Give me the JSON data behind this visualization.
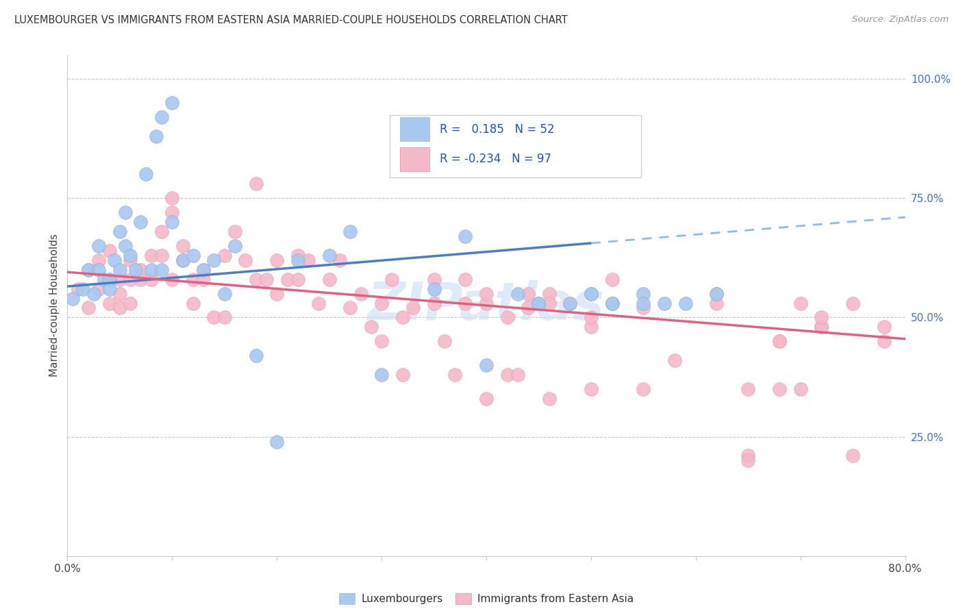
{
  "title": "LUXEMBOURGER VS IMMIGRANTS FROM EASTERN ASIA MARRIED-COUPLE HOUSEHOLDS CORRELATION CHART",
  "source": "Source: ZipAtlas.com",
  "ylabel": "Married-couple Households",
  "legend_label1": "Luxembourgers",
  "legend_label2": "Immigrants from Eastern Asia",
  "R1": 0.185,
  "N1": 52,
  "R2": -0.234,
  "N2": 97,
  "blue_color": "#A8C8F0",
  "pink_color": "#F5B8C8",
  "line_blue": "#4A7CC7",
  "line_pink": "#E06080",
  "line_blue_dashed": "#90BAE8",
  "watermark_color": "#C8DFF0",
  "xlim": [
    0.0,
    0.8
  ],
  "ylim": [
    0.0,
    1.05
  ],
  "blue_x": [
    0.005,
    0.015,
    0.02,
    0.025,
    0.03,
    0.03,
    0.035,
    0.04,
    0.04,
    0.045,
    0.05,
    0.05,
    0.055,
    0.055,
    0.06,
    0.065,
    0.07,
    0.075,
    0.08,
    0.085,
    0.09,
    0.09,
    0.1,
    0.1,
    0.11,
    0.12,
    0.13,
    0.14,
    0.15,
    0.16,
    0.18,
    0.2,
    0.22,
    0.25,
    0.27,
    0.3,
    0.35,
    0.38,
    0.4,
    0.43,
    0.45,
    0.5,
    0.52,
    0.55,
    0.57,
    0.59,
    0.62,
    0.45,
    0.48,
    0.5,
    0.52,
    0.55
  ],
  "blue_y": [
    0.54,
    0.56,
    0.6,
    0.55,
    0.6,
    0.65,
    0.58,
    0.58,
    0.56,
    0.62,
    0.6,
    0.68,
    0.65,
    0.72,
    0.63,
    0.6,
    0.7,
    0.8,
    0.6,
    0.88,
    0.92,
    0.6,
    0.7,
    0.95,
    0.62,
    0.63,
    0.6,
    0.62,
    0.55,
    0.65,
    0.42,
    0.24,
    0.62,
    0.63,
    0.68,
    0.38,
    0.56,
    0.67,
    0.4,
    0.55,
    0.53,
    0.55,
    0.53,
    0.55,
    0.53,
    0.53,
    0.55,
    0.53,
    0.53,
    0.55,
    0.53,
    0.53
  ],
  "pink_x": [
    0.01,
    0.02,
    0.02,
    0.03,
    0.03,
    0.04,
    0.04,
    0.04,
    0.05,
    0.05,
    0.05,
    0.06,
    0.06,
    0.06,
    0.07,
    0.07,
    0.08,
    0.08,
    0.09,
    0.09,
    0.1,
    0.1,
    0.1,
    0.11,
    0.11,
    0.12,
    0.12,
    0.13,
    0.13,
    0.14,
    0.15,
    0.15,
    0.16,
    0.17,
    0.18,
    0.18,
    0.19,
    0.2,
    0.2,
    0.21,
    0.22,
    0.22,
    0.23,
    0.24,
    0.25,
    0.26,
    0.27,
    0.28,
    0.29,
    0.3,
    0.31,
    0.32,
    0.33,
    0.35,
    0.36,
    0.37,
    0.38,
    0.4,
    0.42,
    0.44,
    0.46,
    0.48,
    0.5,
    0.52,
    0.3,
    0.32,
    0.35,
    0.38,
    0.4,
    0.42,
    0.44,
    0.46,
    0.5,
    0.55,
    0.58,
    0.62,
    0.65,
    0.68,
    0.7,
    0.72,
    0.75,
    0.78,
    0.65,
    0.68,
    0.72,
    0.75,
    0.78,
    0.62,
    0.65,
    0.68,
    0.7,
    0.72,
    0.4,
    0.43,
    0.46,
    0.5,
    0.55
  ],
  "pink_y": [
    0.56,
    0.52,
    0.6,
    0.62,
    0.56,
    0.58,
    0.53,
    0.64,
    0.55,
    0.52,
    0.58,
    0.62,
    0.58,
    0.53,
    0.6,
    0.58,
    0.63,
    0.58,
    0.68,
    0.63,
    0.72,
    0.75,
    0.58,
    0.65,
    0.62,
    0.58,
    0.53,
    0.6,
    0.58,
    0.5,
    0.63,
    0.5,
    0.68,
    0.62,
    0.58,
    0.78,
    0.58,
    0.62,
    0.55,
    0.58,
    0.63,
    0.58,
    0.62,
    0.53,
    0.58,
    0.62,
    0.52,
    0.55,
    0.48,
    0.53,
    0.58,
    0.38,
    0.52,
    0.58,
    0.45,
    0.38,
    0.58,
    0.53,
    0.38,
    0.52,
    0.55,
    0.53,
    0.48,
    0.58,
    0.45,
    0.5,
    0.53,
    0.53,
    0.55,
    0.5,
    0.55,
    0.53,
    0.5,
    0.52,
    0.41,
    0.53,
    0.21,
    0.45,
    0.53,
    0.48,
    0.53,
    0.48,
    0.2,
    0.45,
    0.48,
    0.21,
    0.45,
    0.55,
    0.35,
    0.35,
    0.35,
    0.5,
    0.33,
    0.38,
    0.33,
    0.35,
    0.35
  ]
}
